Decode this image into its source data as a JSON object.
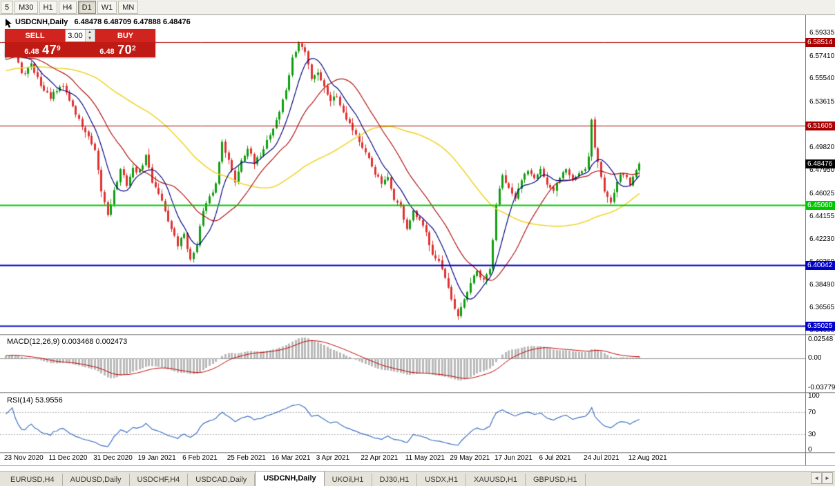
{
  "toolbar": {
    "timeframes": [
      {
        "label": "5",
        "active": false
      },
      {
        "label": "M30",
        "active": false
      },
      {
        "label": "H1",
        "active": false
      },
      {
        "label": "H4",
        "active": false
      },
      {
        "label": "D1",
        "active": true
      },
      {
        "label": "W1",
        "active": false
      },
      {
        "label": "MN",
        "active": false
      }
    ]
  },
  "chart_header": {
    "symbol_title": "USDCNH,Daily",
    "ohlc": "6.48478 6.48709 6.47888 6.48476"
  },
  "trade_panel": {
    "sell_label": "SELL",
    "buy_label": "BUY",
    "volume": "3.00",
    "sell_price": {
      "small": "6.48",
      "big": "47",
      "sup": "9"
    },
    "buy_price": {
      "small": "6.48",
      "big": "70",
      "sup": "2"
    }
  },
  "price_axis": {
    "ticks": [
      "6.59335",
      "6.57410",
      "6.55540",
      "6.53615",
      "6.51690",
      "6.49820",
      "6.47950",
      "6.46025",
      "6.44155",
      "6.42230",
      "6.40360",
      "6.38490",
      "6.36565",
      "6.34695"
    ]
  },
  "levels": [
    {
      "price": "6.58514",
      "value": 6.58514,
      "color": "#A80000",
      "width": 1
    },
    {
      "price": "6.51605",
      "value": 6.51605,
      "color": "#A80000",
      "width": 1
    },
    {
      "price": "6.45060",
      "value": 6.4506,
      "color": "#00C800",
      "width": 2
    },
    {
      "price": "6.40042",
      "value": 6.40042,
      "color": "#0000C8",
      "width": 2
    },
    {
      "price": "6.35025",
      "value": 6.35025,
      "color": "#0000C8",
      "width": 2
    }
  ],
  "current_price": {
    "label": "6.48476",
    "value": 6.48476
  },
  "macd_panel": {
    "label": "MACD(12,26,9) 0.003468 0.002473",
    "scale_top": "0.02548",
    "scale_zero": "0.00",
    "scale_bottom": "-0.03779"
  },
  "rsi_panel": {
    "label": "RSI(14) 53.9556",
    "scale": [
      "100",
      "70",
      "30",
      "0"
    ],
    "levels": [
      70,
      30
    ]
  },
  "x_axis_labels": [
    {
      "label": "23 Nov 2020",
      "index": 0
    },
    {
      "label": "11 Dec 2020",
      "index": 14
    },
    {
      "label": "31 Dec 2020",
      "index": 28
    },
    {
      "label": "19 Jan 2021",
      "index": 42
    },
    {
      "label": "6 Feb 2021",
      "index": 56
    },
    {
      "label": "25 Feb 2021",
      "index": 70
    },
    {
      "label": "16 Mar 2021",
      "index": 84
    },
    {
      "label": "3 Apr 2021",
      "index": 98
    },
    {
      "label": "22 Apr 2021",
      "index": 112
    },
    {
      "label": "11 May 2021",
      "index": 126
    },
    {
      "label": "29 May 2021",
      "index": 140
    },
    {
      "label": "17 Jun 2021",
      "index": 154
    },
    {
      "label": "6 Jul 2021",
      "index": 168
    },
    {
      "label": "24 Jul 2021",
      "index": 182
    },
    {
      "label": "12 Aug 2021",
      "index": 196
    }
  ],
  "tabs": [
    {
      "label": "EURUSD,H4",
      "active": false
    },
    {
      "label": "AUDUSD,Daily",
      "active": false
    },
    {
      "label": "USDCHF,H4",
      "active": false
    },
    {
      "label": "USDCAD,Daily",
      "active": false
    },
    {
      "label": "USDCNH,Daily",
      "active": true
    },
    {
      "label": "UKOil,H1",
      "active": false
    },
    {
      "label": "DJ30,H1",
      "active": false
    },
    {
      "label": "USDX,H1",
      "active": false
    },
    {
      "label": "XAUUSD,H1",
      "active": false
    },
    {
      "label": "GBPUSD,H1",
      "active": false
    }
  ],
  "colors": {
    "bull": "#0F9D0F",
    "bear": "#E03030",
    "ma_slow_yellow": "#EFD52B",
    "ma_mid_red": "#B01010",
    "ma_fast_navy": "#000080",
    "macd_hist": "#B9B9B9",
    "macd_signal": "#C00000",
    "rsi_line": "#3A6FC4",
    "tag_current_bg": "#000000",
    "trade_red": "#D2241E",
    "trade_red_dark": "#C01A14"
  },
  "chart_data": {
    "type": "candlestick",
    "symbol": "USDCNH",
    "timeframe": "Daily",
    "visible_candles": 200,
    "price_range": {
      "top": 6.59335,
      "bottom": 6.34695
    },
    "ohlc_current": {
      "open": 6.48478,
      "high": 6.48709,
      "low": 6.47888,
      "close": 6.48476
    },
    "horizontal_lines": [
      6.58514,
      6.51605,
      6.4506,
      6.40042,
      6.35025
    ],
    "close_path_anchors": [
      [
        0,
        6.578
      ],
      [
        2,
        6.588
      ],
      [
        5,
        6.558
      ],
      [
        8,
        6.566
      ],
      [
        12,
        6.545
      ],
      [
        14,
        6.54
      ],
      [
        18,
        6.549
      ],
      [
        22,
        6.526
      ],
      [
        26,
        6.506
      ],
      [
        28,
        6.494
      ],
      [
        30,
        6.462
      ],
      [
        32,
        6.443
      ],
      [
        34,
        6.462
      ],
      [
        36,
        6.479
      ],
      [
        38,
        6.468
      ],
      [
        40,
        6.48
      ],
      [
        42,
        6.478
      ],
      [
        44,
        6.491
      ],
      [
        46,
        6.47
      ],
      [
        48,
        6.461
      ],
      [
        50,
        6.446
      ],
      [
        52,
        6.43
      ],
      [
        54,
        6.417
      ],
      [
        56,
        6.427
      ],
      [
        58,
        6.404
      ],
      [
        60,
        6.419
      ],
      [
        62,
        6.445
      ],
      [
        64,
        6.456
      ],
      [
        66,
        6.468
      ],
      [
        68,
        6.504
      ],
      [
        70,
        6.487
      ],
      [
        72,
        6.47
      ],
      [
        74,
        6.488
      ],
      [
        76,
        6.498
      ],
      [
        78,
        6.484
      ],
      [
        80,
        6.492
      ],
      [
        82,
        6.504
      ],
      [
        84,
        6.514
      ],
      [
        86,
        6.528
      ],
      [
        88,
        6.546
      ],
      [
        90,
        6.571
      ],
      [
        92,
        6.585
      ],
      [
        94,
        6.577
      ],
      [
        96,
        6.556
      ],
      [
        98,
        6.561
      ],
      [
        100,
        6.548
      ],
      [
        102,
        6.538
      ],
      [
        104,
        6.541
      ],
      [
        106,
        6.528
      ],
      [
        108,
        6.518
      ],
      [
        110,
        6.509
      ],
      [
        112,
        6.497
      ],
      [
        114,
        6.488
      ],
      [
        116,
        6.477
      ],
      [
        118,
        6.468
      ],
      [
        120,
        6.472
      ],
      [
        122,
        6.456
      ],
      [
        124,
        6.448
      ],
      [
        126,
        6.431
      ],
      [
        128,
        6.444
      ],
      [
        130,
        6.437
      ],
      [
        132,
        6.427
      ],
      [
        134,
        6.411
      ],
      [
        136,
        6.404
      ],
      [
        138,
        6.389
      ],
      [
        140,
        6.371
      ],
      [
        142,
        6.357
      ],
      [
        144,
        6.372
      ],
      [
        146,
        6.386
      ],
      [
        148,
        6.395
      ],
      [
        150,
        6.387
      ],
      [
        152,
        6.398
      ],
      [
        153,
        6.42
      ],
      [
        154,
        6.452
      ],
      [
        156,
        6.477
      ],
      [
        158,
        6.464
      ],
      [
        160,
        6.454
      ],
      [
        162,
        6.471
      ],
      [
        164,
        6.48
      ],
      [
        166,
        6.474
      ],
      [
        168,
        6.481
      ],
      [
        170,
        6.467
      ],
      [
        172,
        6.461
      ],
      [
        174,
        6.474
      ],
      [
        176,
        6.48
      ],
      [
        178,
        6.471
      ],
      [
        180,
        6.477
      ],
      [
        182,
        6.481
      ],
      [
        183,
        6.492
      ],
      [
        184,
        6.521
      ],
      [
        185,
        6.499
      ],
      [
        186,
        6.486
      ],
      [
        188,
        6.461
      ],
      [
        190,
        6.454
      ],
      [
        192,
        6.471
      ],
      [
        194,
        6.477
      ],
      [
        196,
        6.467
      ],
      [
        198,
        6.481
      ],
      [
        199,
        6.48476
      ]
    ],
    "indicators": {
      "moving_averages": [
        {
          "period": 8,
          "color": "#000080"
        },
        {
          "period": 20,
          "color": "#B01010"
        },
        {
          "period": 55,
          "color": "#EFD52B"
        }
      ],
      "macd": {
        "params": [
          12,
          26,
          9
        ],
        "values": [
          0.003468,
          0.002473
        ]
      },
      "rsi": {
        "period": 14,
        "value": 53.9556
      }
    }
  }
}
